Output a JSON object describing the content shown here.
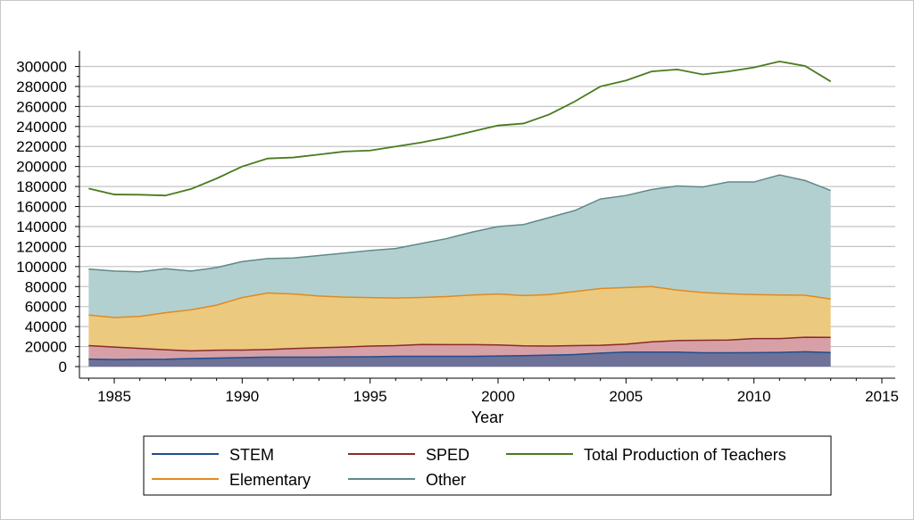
{
  "chart_data": {
    "type": "area",
    "xlabel": "Year",
    "ylabel": "",
    "xlim": [
      1984,
      2015
    ],
    "ylim": [
      0,
      305000
    ],
    "x_ticks": [
      1985,
      1990,
      1995,
      2000,
      2005,
      2010,
      2015
    ],
    "y_ticks": [
      0,
      20000,
      40000,
      60000,
      80000,
      100000,
      120000,
      140000,
      160000,
      180000,
      200000,
      220000,
      240000,
      260000,
      280000,
      300000
    ],
    "grid": true,
    "stacked": true,
    "x": [
      1984,
      1985,
      1986,
      1987,
      1988,
      1989,
      1990,
      1991,
      1992,
      1993,
      1994,
      1995,
      1996,
      1997,
      1998,
      1999,
      2000,
      2001,
      2002,
      2003,
      2004,
      2005,
      2006,
      2007,
      2008,
      2009,
      2010,
      2011,
      2012,
      2013
    ],
    "series": [
      {
        "name": "STEM",
        "color": "#1f4e8c",
        "fill": "#6e7198",
        "values": [
          7500,
          7000,
          7200,
          7300,
          8000,
          8500,
          9000,
          9500,
          9500,
          9500,
          9700,
          9800,
          10200,
          10200,
          10300,
          10300,
          10600,
          10900,
          11500,
          12000,
          13500,
          14500,
          14500,
          14500,
          13800,
          13800,
          13900,
          14200,
          14800,
          14000
        ]
      },
      {
        "name": "SPED",
        "color": "#8b2a2a",
        "fill": "#d7a0a7",
        "values": [
          13500,
          12500,
          11000,
          9500,
          7700,
          7900,
          7500,
          7500,
          8500,
          9300,
          9800,
          10700,
          10800,
          11900,
          11700,
          11700,
          11000,
          9800,
          9000,
          9000,
          7800,
          7900,
          10200,
          11500,
          12500,
          12700,
          14100,
          13800,
          14500,
          15200
        ]
      },
      {
        "name": "Elementary",
        "color": "#e08a1e",
        "fill": "#ebca7f",
        "values": [
          30500,
          29500,
          32000,
          37000,
          41000,
          45000,
          52500,
          56500,
          54500,
          51700,
          49900,
          48500,
          47500,
          47000,
          48000,
          49500,
          50900,
          50300,
          51500,
          54000,
          56700,
          56600,
          55300,
          50500,
          47700,
          46300,
          44000,
          43500,
          42000,
          38300
        ]
      },
      {
        "name": "Other",
        "color": "#5f8a87",
        "fill": "#b3d0d0",
        "values": [
          46000,
          46500,
          44500,
          44000,
          38800,
          37600,
          36000,
          34500,
          36000,
          40500,
          44100,
          47000,
          49500,
          53900,
          58000,
          63000,
          67500,
          71000,
          77000,
          81000,
          89500,
          92000,
          97000,
          104000,
          105500,
          111700,
          112500,
          120000,
          114700,
          108500
        ]
      },
      {
        "name": "Total Production of Teachers",
        "color": "#4a7a1e",
        "type": "line",
        "values": [
          178000,
          172000,
          171800,
          171000,
          177500,
          188000,
          200000,
          208000,
          209000,
          212000,
          215000,
          216000,
          220000,
          224000,
          229000,
          235000,
          241000,
          243000,
          252000,
          265000,
          280000,
          286000,
          295000,
          297000,
          292000,
          295000,
          299000,
          305000,
          300500,
          285000
        ]
      }
    ],
    "legend": {
      "position": "bottom",
      "items": [
        "STEM",
        "SPED",
        "Total Production of Teachers",
        "Elementary",
        "Other"
      ]
    }
  }
}
